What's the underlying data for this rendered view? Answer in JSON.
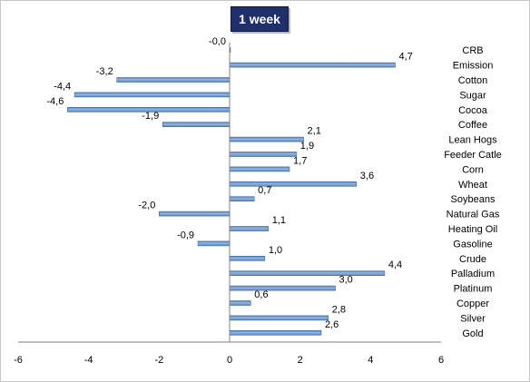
{
  "chart_data": {
    "type": "bar",
    "orientation": "horizontal",
    "title": "1 week",
    "categories": [
      "CRB",
      "Emission",
      "Cotton",
      "Sugar",
      "Cocoa",
      "Coffee",
      "Lean Hogs",
      "Feeder Catle",
      "Corn",
      "Wheat",
      "Soybeans",
      "Natural Gas",
      "Heating Oil",
      "Gasoline",
      "Crude",
      "Palladium",
      "Platinum",
      "Copper",
      "Silver",
      "Gold"
    ],
    "values": [
      -0.0,
      4.7,
      -3.2,
      -4.4,
      -4.6,
      -1.9,
      2.1,
      1.9,
      1.7,
      3.6,
      0.7,
      -2.0,
      1.1,
      -0.9,
      1.0,
      4.4,
      3.0,
      0.6,
      2.8,
      2.6
    ],
    "value_labels": [
      "-0,0",
      "4,7",
      "-3,2",
      "-4,4",
      "-4,6",
      "-1,9",
      "2,1",
      "1,9",
      "1,7",
      "3,6",
      "0,7",
      "-2,0",
      "1,1",
      "-0,9",
      "1,0",
      "4,4",
      "3,0",
      "0,6",
      "2,8",
      "2,6"
    ],
    "xlim": [
      -6,
      6
    ],
    "x_ticks": [
      -6,
      -4,
      -2,
      0,
      2,
      4,
      6
    ],
    "xlabel": "",
    "ylabel": "",
    "grid": false,
    "legend": "none",
    "bar_color": "#4f81bd",
    "bar_highlight": "#9ab7de",
    "title_bg": "#1f2f6b"
  }
}
